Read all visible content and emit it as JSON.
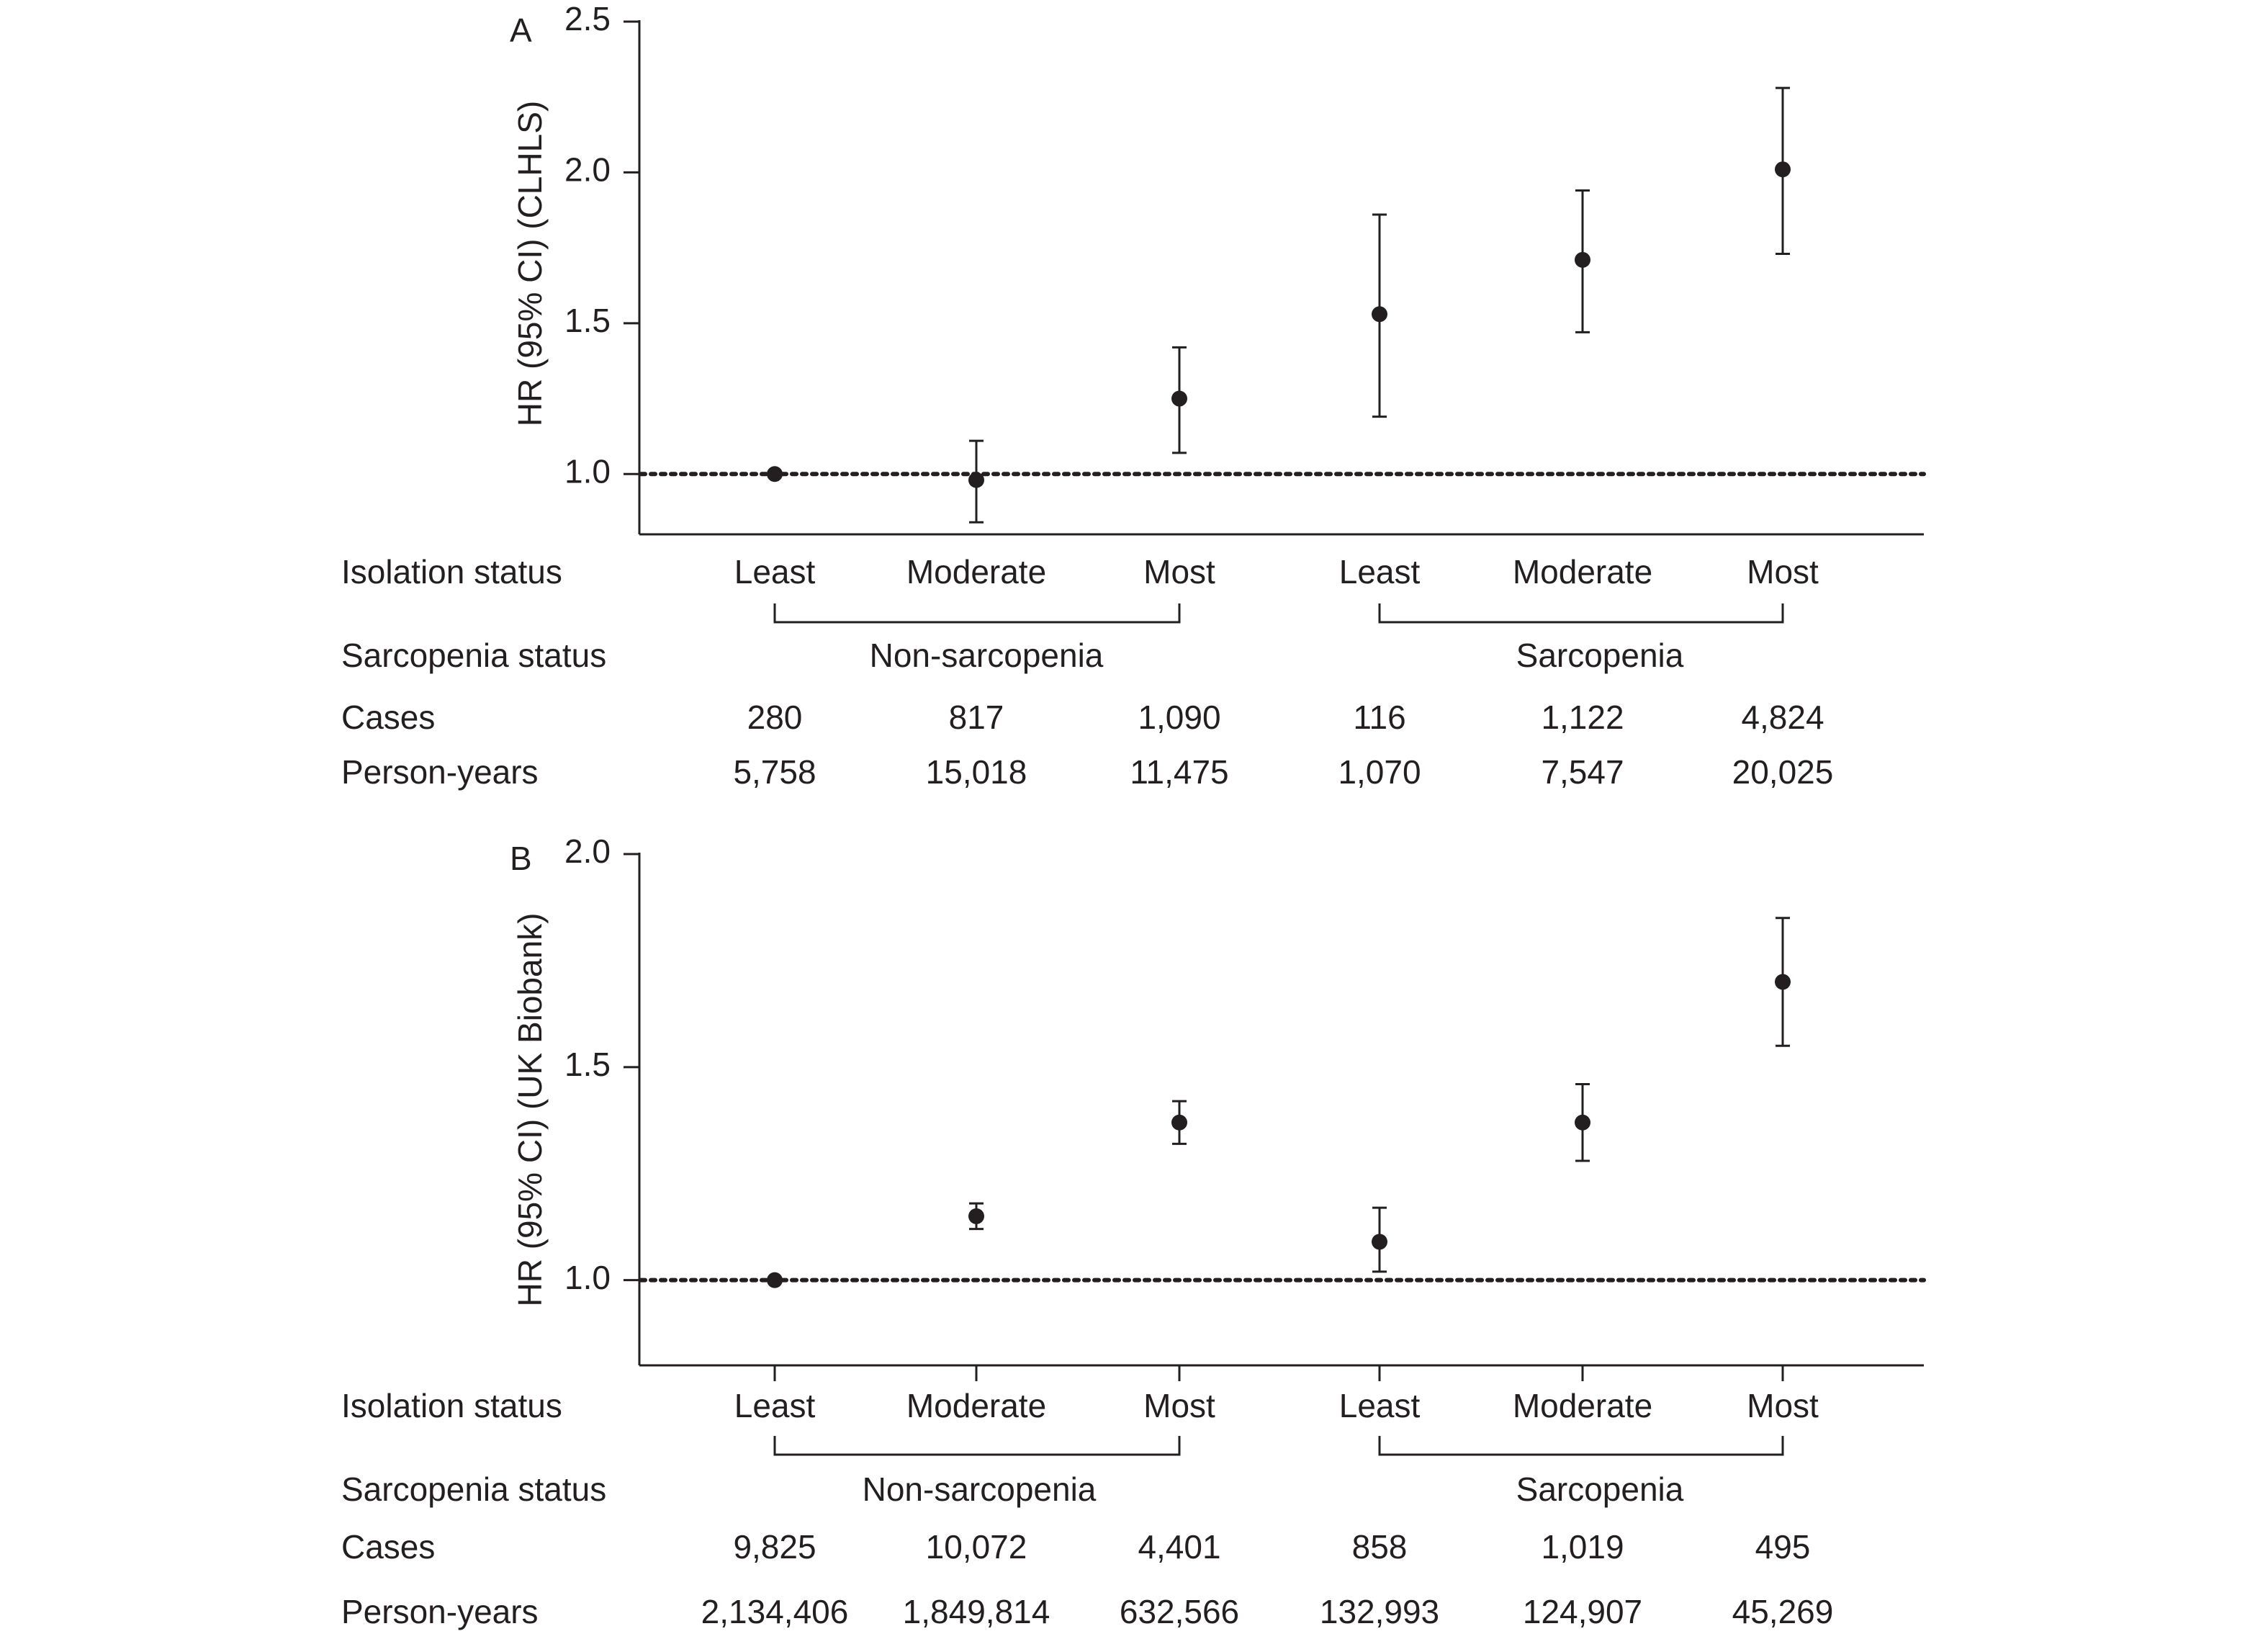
{
  "chart_data": [
    {
      "type": "scatter",
      "panel_label": "A",
      "ylabel": "HR (95% CI) (CLHLS)",
      "ylim": [
        0.8,
        2.5
      ],
      "yticks": [
        "1.0",
        "1.5",
        "2.0",
        "2.5"
      ],
      "reference_line": 1.0,
      "points": [
        {
          "isolation": "Least",
          "group": "Non-sarcopenia",
          "hr": 1.0,
          "lo": 1.0,
          "hi": 1.0
        },
        {
          "isolation": "Moderate",
          "group": "Non-sarcopenia",
          "hr": 0.98,
          "lo": 0.84,
          "hi": 1.11
        },
        {
          "isolation": "Most",
          "group": "Non-sarcopenia",
          "hr": 1.25,
          "lo": 1.07,
          "hi": 1.42
        },
        {
          "isolation": "Least",
          "group": "Sarcopenia",
          "hr": 1.53,
          "lo": 1.19,
          "hi": 1.86
        },
        {
          "isolation": "Moderate",
          "group": "Sarcopenia",
          "hr": 1.71,
          "lo": 1.47,
          "hi": 1.94
        },
        {
          "isolation": "Most",
          "group": "Sarcopenia",
          "hr": 2.01,
          "lo": 1.73,
          "hi": 2.28
        }
      ],
      "table": {
        "isolation_label": "Isolation status",
        "sarcopenia_label": "Sarcopenia status",
        "groups": [
          "Non-sarcopenia",
          "Sarcopenia"
        ],
        "cases_label": "Cases",
        "cases": [
          "280",
          "817",
          "1,090",
          "116",
          "1,122",
          "4,824"
        ],
        "person_years_label": "Person-years",
        "person_years": [
          "5,758",
          "15,018",
          "11,475",
          "1,070",
          "7,547",
          "20,025"
        ]
      }
    },
    {
      "type": "scatter",
      "panel_label": "B",
      "ylabel": "HR (95% CI) (UK Biobank)",
      "ylim": [
        0.8,
        2.0
      ],
      "yticks": [
        "1.0",
        "1.5",
        "2.0"
      ],
      "reference_line": 1.0,
      "points": [
        {
          "isolation": "Least",
          "group": "Non-sarcopenia",
          "hr": 1.0,
          "lo": 1.0,
          "hi": 1.0
        },
        {
          "isolation": "Moderate",
          "group": "Non-sarcopenia",
          "hr": 1.15,
          "lo": 1.12,
          "hi": 1.18
        },
        {
          "isolation": "Most",
          "group": "Non-sarcopenia",
          "hr": 1.37,
          "lo": 1.32,
          "hi": 1.42
        },
        {
          "isolation": "Least",
          "group": "Sarcopenia",
          "hr": 1.09,
          "lo": 1.02,
          "hi": 1.17
        },
        {
          "isolation": "Moderate",
          "group": "Sarcopenia",
          "hr": 1.37,
          "lo": 1.28,
          "hi": 1.46
        },
        {
          "isolation": "Most",
          "group": "Sarcopenia",
          "hr": 1.7,
          "lo": 1.55,
          "hi": 1.85
        }
      ],
      "table": {
        "isolation_label": "Isolation status",
        "sarcopenia_label": "Sarcopenia status",
        "groups": [
          "Non-sarcopenia",
          "Sarcopenia"
        ],
        "cases_label": "Cases",
        "cases": [
          "9,825",
          "10,072",
          "4,401",
          "858",
          "1,019",
          "495"
        ],
        "person_years_label": "Person-years",
        "person_years": [
          "2,134,406",
          "1,849,814",
          "632,566",
          "132,993",
          "124,907",
          "45,269"
        ]
      }
    }
  ]
}
